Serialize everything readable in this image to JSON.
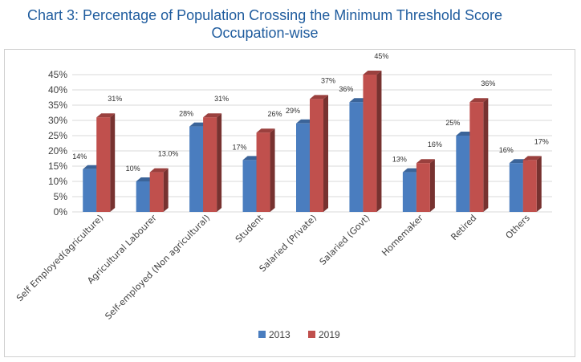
{
  "title_line1": "Chart 3: Percentage of Population Crossing the Minimum Threshold Score",
  "title_line2": "Occupation-wise",
  "colors": {
    "2013": "#4a7dbf",
    "2019": "#c0504d",
    "title": "#1f5c9e"
  },
  "chart_data": {
    "type": "bar",
    "style": "3d-clustered-column",
    "categories": [
      "Self Employed(agriculture)",
      "Agricultural Labourer",
      "Self-employed (Non agricultural)",
      "Student",
      "Salaried (Private)",
      "Salaried (Govt)",
      "Homemaker",
      "Retired",
      "Others"
    ],
    "series": [
      {
        "name": "2013",
        "values": [
          14,
          10,
          28,
          17,
          29,
          36,
          13,
          25,
          16
        ],
        "labels": [
          "14%",
          "10%",
          "28%",
          "17%",
          "29%",
          "36%",
          "13%",
          "25%",
          "16%"
        ]
      },
      {
        "name": "2019",
        "values": [
          31,
          13,
          31,
          26,
          37,
          45,
          16,
          36,
          17
        ],
        "labels": [
          "31%",
          "13.0%",
          "31%",
          "26%",
          "37%",
          "45%",
          "16%",
          "36%",
          "17%"
        ]
      }
    ],
    "yticks": [
      "0%",
      "5%",
      "10%",
      "15%",
      "20%",
      "25%",
      "30%",
      "35%",
      "40%",
      "45%"
    ],
    "ylim": [
      0,
      45
    ],
    "grid": true,
    "legend_position": "bottom"
  }
}
